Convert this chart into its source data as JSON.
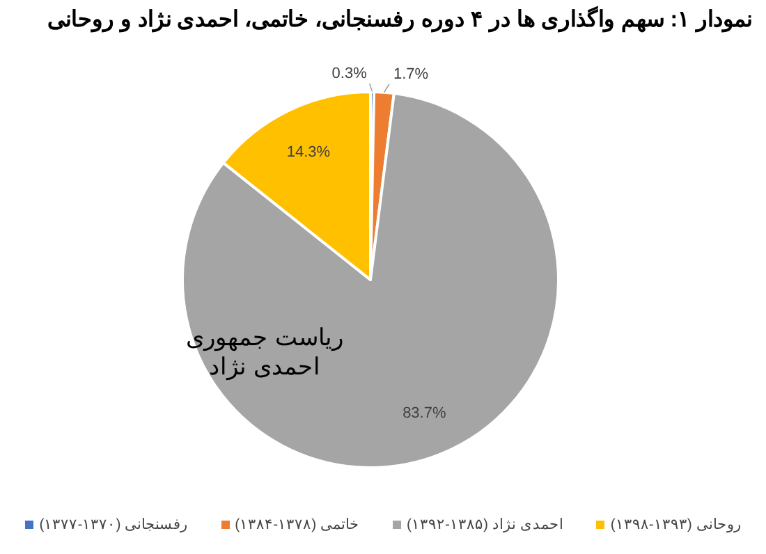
{
  "chart_data": {
    "type": "pie",
    "title": "نمودار ۱: سهم واگذاری ها  در ۴ دوره رفسنجانی، خاتمی، احمدی نژاد و روحانی",
    "categories": [
      "رفسنجانی (۱۳۷۰-۱۳۷۷)",
      "خاتمی (۱۳۷۸-۱۳۸۴)",
      "احمدی نژاد (۱۳۸۵-۱۳۹۲)",
      "روحانی (۱۳۹۳-۱۳۹۸)"
    ],
    "values": [
      0.3,
      1.7,
      83.7,
      14.3
    ],
    "colors": [
      "#4472c4",
      "#ed7d31",
      "#a5a5a5",
      "#ffc000"
    ],
    "value_labels": [
      "0.3%",
      "1.7%",
      "83.7%",
      "14.3%"
    ],
    "annotations": [
      "ریاست جمهوری\nاحمدی نژاد"
    ],
    "legend": "bottom"
  }
}
